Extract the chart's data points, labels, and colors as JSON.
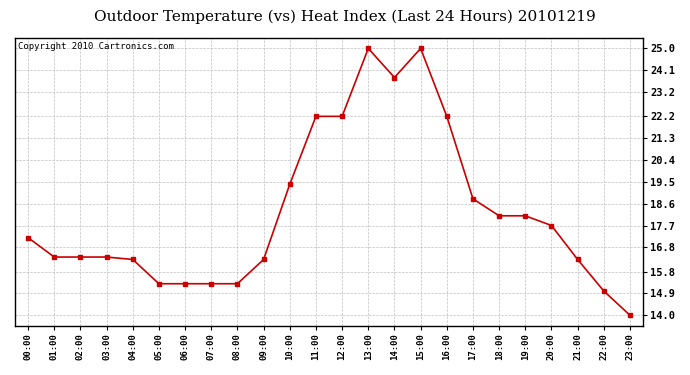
{
  "title": "Outdoor Temperature (vs) Heat Index (Last 24 Hours) 20101219",
  "copyright": "Copyright 2010 Cartronics.com",
  "x_labels": [
    "00:00",
    "01:00",
    "02:00",
    "03:00",
    "04:00",
    "05:00",
    "06:00",
    "07:00",
    "08:00",
    "09:00",
    "10:00",
    "11:00",
    "12:00",
    "13:00",
    "14:00",
    "15:00",
    "16:00",
    "17:00",
    "18:00",
    "19:00",
    "20:00",
    "21:00",
    "22:00",
    "23:00"
  ],
  "y_values": [
    17.2,
    16.4,
    16.4,
    16.4,
    16.3,
    15.3,
    15.3,
    15.3,
    15.3,
    16.3,
    19.4,
    22.2,
    22.2,
    25.0,
    23.8,
    25.0,
    22.2,
    18.8,
    18.1,
    18.1,
    17.7,
    16.3,
    15.0,
    14.0
  ],
  "line_color": "#cc0000",
  "marker": "s",
  "marker_size": 3,
  "background_color": "#ffffff",
  "grid_color": "#b0b0b0",
  "y_ticks": [
    14.0,
    14.9,
    15.8,
    16.8,
    17.7,
    18.6,
    19.5,
    20.4,
    21.3,
    22.2,
    23.2,
    24.1,
    25.0
  ],
  "ylim_min": 13.55,
  "ylim_max": 25.45,
  "title_fontsize": 11,
  "copyright_fontsize": 6.5
}
